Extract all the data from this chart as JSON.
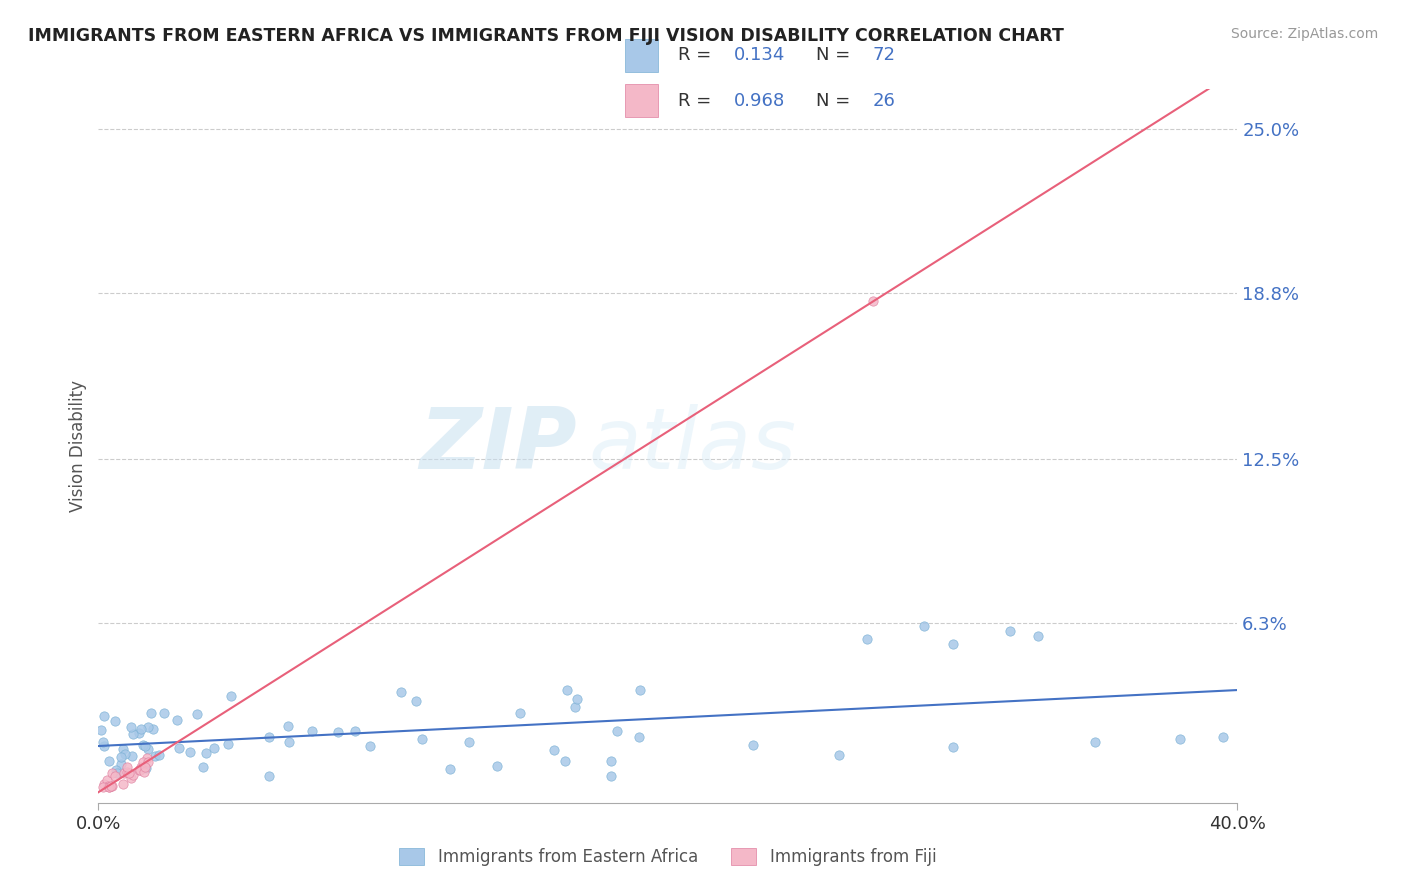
{
  "title": "IMMIGRANTS FROM EASTERN AFRICA VS IMMIGRANTS FROM FIJI VISION DISABILITY CORRELATION CHART",
  "source": "Source: ZipAtlas.com",
  "ylabel": "Vision Disability",
  "ytick_vals": [
    0.063,
    0.125,
    0.188,
    0.25
  ],
  "ytick_labels": [
    "6.3%",
    "12.5%",
    "18.8%",
    "25.0%"
  ],
  "xlim": [
    0.0,
    0.4
  ],
  "ylim": [
    -0.005,
    0.265
  ],
  "series1_color": "#a8c8e8",
  "series1_edge": "#7ab0d4",
  "series1_line": "#4472c4",
  "series2_color": "#f4b8c8",
  "series2_edge": "#e080a0",
  "series2_line": "#e8607a",
  "legend1_r": "0.134",
  "legend1_n": "72",
  "legend2_r": "0.968",
  "legend2_n": "26",
  "label1": "Immigrants from Eastern Africa",
  "label2": "Immigrants from Fiji",
  "watermark_zip": "ZIP",
  "watermark_atlas": "atlas",
  "num_color": "#4472c4",
  "grid_color": "#cccccc",
  "background_color": "#ffffff"
}
